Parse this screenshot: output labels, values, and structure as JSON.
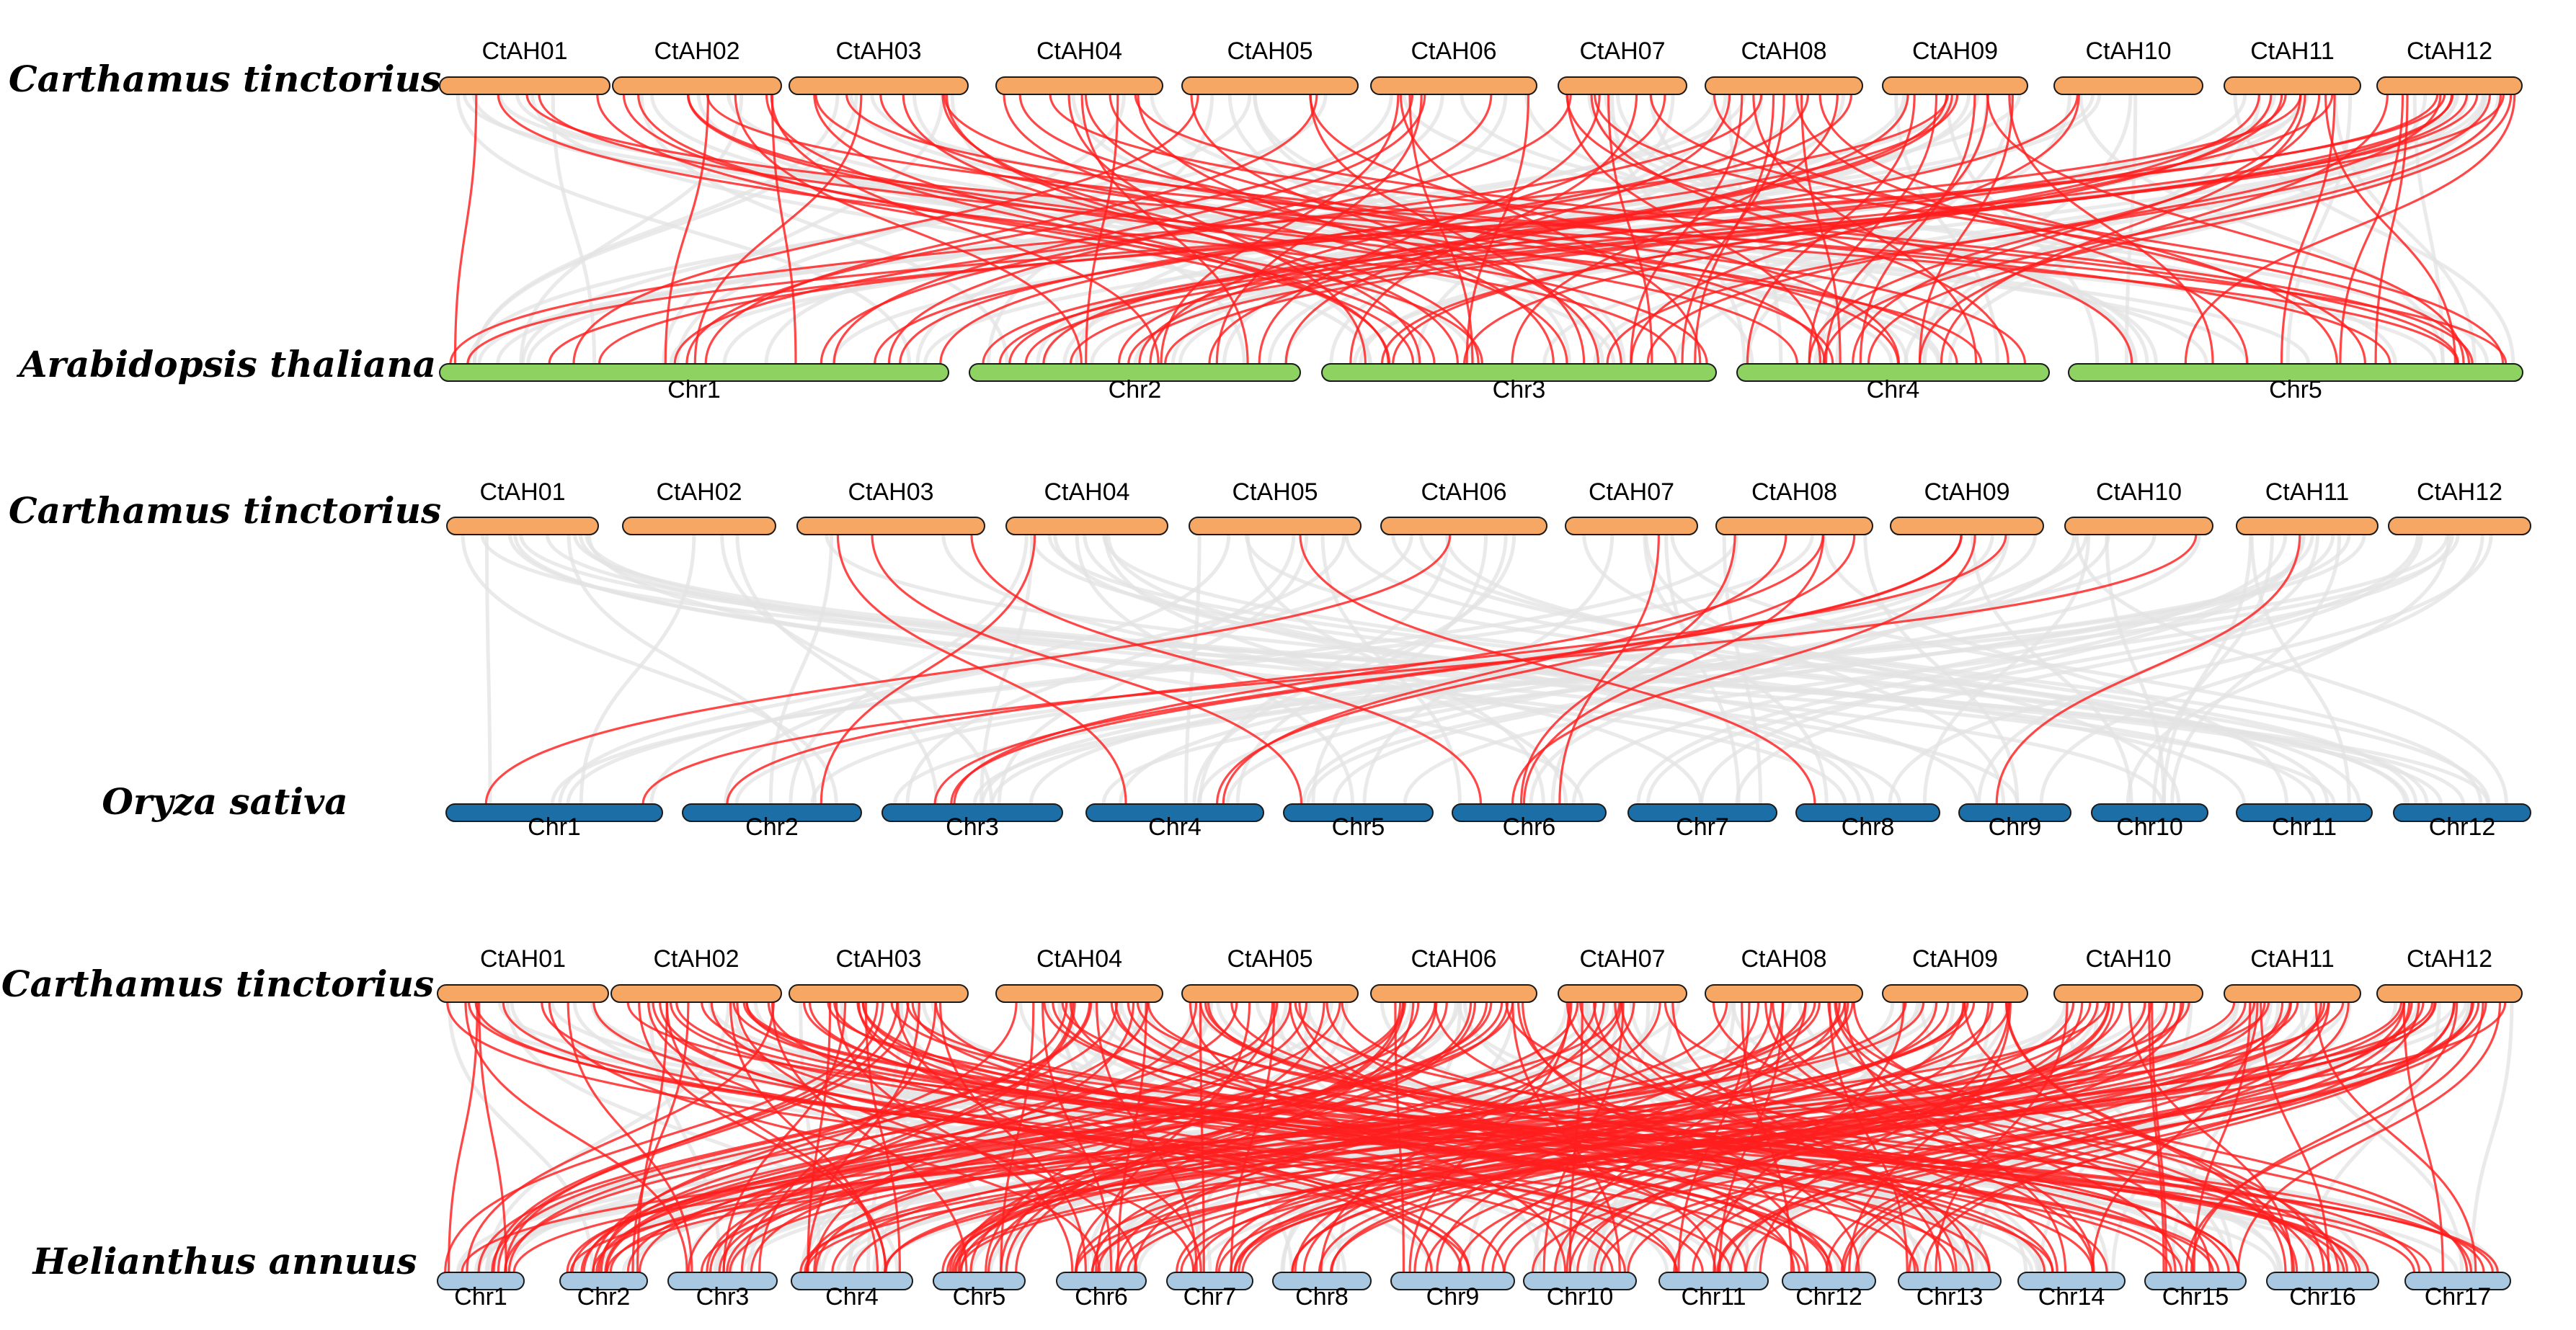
{
  "colors": {
    "safflower": "#F6A764",
    "arabidopsis": "#8ED362",
    "rice": "#1B6FA6",
    "sunflower": "#A9C8E2",
    "highlight": "#FF1E1E",
    "background_link": "#E3E3E3"
  },
  "panels": [
    {
      "id": "arabidopsis",
      "top_species": "Carthamus tinctorius",
      "bottom_species": "Arabidopsis thaliana",
      "top_chromosomes": [
        "CtAH01",
        "CtAH02",
        "CtAH03",
        "CtAH04",
        "CtAH05",
        "CtAH06",
        "CtAH07",
        "CtAH08",
        "CtAH09",
        "CtAH10",
        "CtAH11",
        "CtAH12"
      ],
      "bottom_chromosomes": [
        "Chr1",
        "Chr2",
        "Chr3",
        "Chr4",
        "Chr5"
      ],
      "highlight_link_count": 110,
      "background_link_count": 80
    },
    {
      "id": "rice",
      "top_species": "Carthamus tinctorius",
      "bottom_species": "Oryza sativa",
      "top_chromosomes": [
        "CtAH01",
        "CtAH02",
        "CtAH03",
        "CtAH04",
        "CtAH05",
        "CtAH06",
        "CtAH07",
        "CtAH08",
        "CtAH09",
        "CtAH10",
        "CtAH11",
        "CtAH12"
      ],
      "bottom_chromosomes": [
        "Chr1",
        "Chr2",
        "Chr3",
        "Chr4",
        "Chr5",
        "Chr6",
        "Chr7",
        "Chr8",
        "Chr9",
        "Chr10",
        "Chr11",
        "Chr12"
      ],
      "highlight_link_count": 18,
      "background_link_count": 90
    },
    {
      "id": "sunflower",
      "top_species": "Carthamus tinctorius",
      "bottom_species": "Helianthus annuus",
      "top_chromosomes": [
        "CtAH01",
        "CtAH02",
        "CtAH03",
        "CtAH04",
        "CtAH05",
        "CtAH06",
        "CtAH07",
        "CtAH08",
        "CtAH09",
        "CtAH10",
        "CtAH11",
        "CtAH12"
      ],
      "bottom_chromosomes": [
        "Chr1",
        "Chr2",
        "Chr3",
        "Chr4",
        "Chr5",
        "Chr6",
        "Chr7",
        "Chr8",
        "Chr9",
        "Chr10",
        "Chr11",
        "Chr12",
        "Chr13",
        "Chr14",
        "Chr15",
        "Chr16",
        "Chr17"
      ],
      "highlight_link_count": 240,
      "background_link_count": 120
    }
  ]
}
